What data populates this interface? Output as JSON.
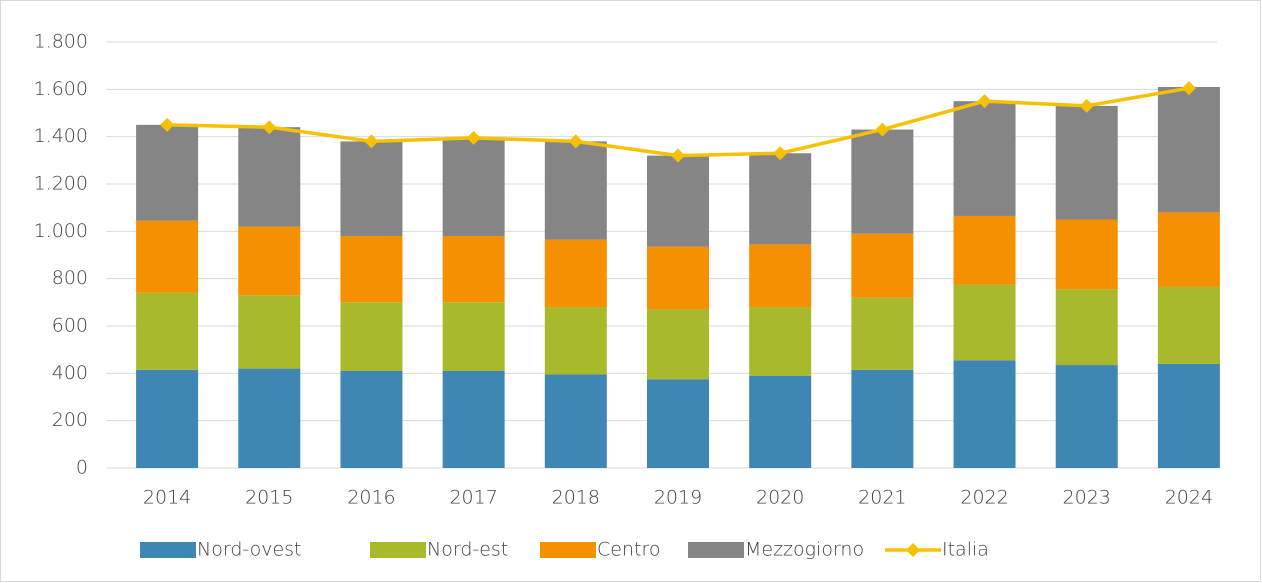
{
  "chart_data": {
    "type": "bar",
    "stacked": true,
    "categories": [
      "2014",
      "2015",
      "2016",
      "2017",
      "2018",
      "2019",
      "2020",
      "2021",
      "2022",
      "2023",
      "2024"
    ],
    "series": [
      {
        "name": "Nord-ovest",
        "color": "#3e87b5",
        "values": [
          415,
          420,
          410,
          410,
          395,
          375,
          390,
          415,
          455,
          435,
          440
        ]
      },
      {
        "name": "Nord-est",
        "color": "#a8b92b",
        "values": [
          325,
          310,
          290,
          290,
          285,
          295,
          290,
          305,
          320,
          320,
          325
        ]
      },
      {
        "name": "Centro",
        "color": "#f59100",
        "values": [
          305,
          290,
          280,
          280,
          285,
          265,
          265,
          270,
          290,
          295,
          315
        ]
      },
      {
        "name": "Mezzogiorno",
        "color": "#858585",
        "values": [
          405,
          420,
          400,
          415,
          415,
          385,
          385,
          440,
          485,
          480,
          530
        ]
      },
      {
        "name": "Italia",
        "color": "#f5c100",
        "type": "line",
        "values": [
          1450,
          1440,
          1380,
          1395,
          1380,
          1320,
          1330,
          1430,
          1550,
          1530,
          1605
        ]
      }
    ],
    "ylim": [
      0,
      1800
    ],
    "yticks": [
      0,
      200,
      400,
      600,
      800,
      {
        "value": 1000,
        "label": "1.000"
      },
      {
        "value": 1200,
        "label": "1.200"
      },
      {
        "value": 1400,
        "label": "1.400"
      },
      {
        "value": 1600,
        "label": "1.600"
      },
      {
        "value": 1800,
        "label": "1.800"
      }
    ],
    "grid": true,
    "legend": "bottom"
  }
}
